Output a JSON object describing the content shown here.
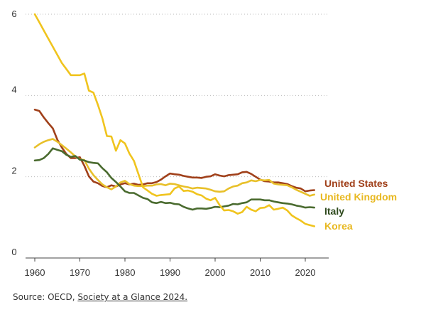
{
  "chart_data": {
    "type": "line",
    "title": "",
    "xlabel": "",
    "ylabel": "",
    "xlim": [
      1960,
      2022
    ],
    "ylim": [
      0,
      6
    ],
    "x_ticks": [
      1960,
      1970,
      1980,
      1990,
      2000,
      2010,
      2020
    ],
    "y_ticks": [
      0,
      2,
      4,
      6
    ],
    "grid": "horizontal dotted",
    "legend": "direct labels at line ends",
    "series": [
      {
        "name": "United States",
        "color": "#a0401a",
        "points": [
          [
            1960,
            3.65
          ],
          [
            1961,
            3.62
          ],
          [
            1962,
            3.46
          ],
          [
            1963,
            3.32
          ],
          [
            1964,
            3.19
          ],
          [
            1965,
            2.91
          ],
          [
            1966,
            2.72
          ],
          [
            1967,
            2.56
          ],
          [
            1968,
            2.46
          ],
          [
            1969,
            2.46
          ],
          [
            1970,
            2.48
          ],
          [
            1971,
            2.27
          ],
          [
            1972,
            2.01
          ],
          [
            1973,
            1.88
          ],
          [
            1974,
            1.84
          ],
          [
            1975,
            1.77
          ],
          [
            1976,
            1.74
          ],
          [
            1977,
            1.79
          ],
          [
            1978,
            1.76
          ],
          [
            1979,
            1.81
          ],
          [
            1980,
            1.84
          ],
          [
            1981,
            1.81
          ],
          [
            1982,
            1.83
          ],
          [
            1983,
            1.8
          ],
          [
            1984,
            1.81
          ],
          [
            1985,
            1.84
          ],
          [
            1986,
            1.84
          ],
          [
            1987,
            1.87
          ],
          [
            1988,
            1.93
          ],
          [
            1989,
            2.01
          ],
          [
            1990,
            2.08
          ],
          [
            1991,
            2.06
          ],
          [
            1992,
            2.05
          ],
          [
            1993,
            2.02
          ],
          [
            1994,
            2.0
          ],
          [
            1995,
            1.98
          ],
          [
            1996,
            1.98
          ],
          [
            1997,
            1.97
          ],
          [
            1998,
            2.0
          ],
          [
            1999,
            2.01
          ],
          [
            2000,
            2.06
          ],
          [
            2001,
            2.03
          ],
          [
            2002,
            2.01
          ],
          [
            2003,
            2.04
          ],
          [
            2004,
            2.05
          ],
          [
            2005,
            2.06
          ],
          [
            2006,
            2.11
          ],
          [
            2007,
            2.12
          ],
          [
            2008,
            2.07
          ],
          [
            2009,
            2.0
          ],
          [
            2010,
            1.93
          ],
          [
            2011,
            1.89
          ],
          [
            2012,
            1.88
          ],
          [
            2013,
            1.86
          ],
          [
            2014,
            1.86
          ],
          [
            2015,
            1.84
          ],
          [
            2016,
            1.82
          ],
          [
            2017,
            1.77
          ],
          [
            2018,
            1.73
          ],
          [
            2019,
            1.71
          ],
          [
            2020,
            1.64
          ],
          [
            2021,
            1.66
          ],
          [
            2022,
            1.67
          ]
        ]
      },
      {
        "name": "United Kingdom",
        "color": "#e8c02a",
        "points": [
          [
            1960,
            2.72
          ],
          [
            1961,
            2.8
          ],
          [
            1962,
            2.86
          ],
          [
            1963,
            2.9
          ],
          [
            1964,
            2.93
          ],
          [
            1965,
            2.86
          ],
          [
            1966,
            2.78
          ],
          [
            1967,
            2.69
          ],
          [
            1968,
            2.6
          ],
          [
            1969,
            2.5
          ],
          [
            1970,
            2.43
          ],
          [
            1971,
            2.41
          ],
          [
            1972,
            2.2
          ],
          [
            1973,
            2.04
          ],
          [
            1974,
            1.92
          ],
          [
            1975,
            1.81
          ],
          [
            1976,
            1.74
          ],
          [
            1977,
            1.69
          ],
          [
            1978,
            1.76
          ],
          [
            1979,
            1.86
          ],
          [
            1980,
            1.9
          ],
          [
            1981,
            1.82
          ],
          [
            1982,
            1.78
          ],
          [
            1983,
            1.77
          ],
          [
            1984,
            1.77
          ],
          [
            1985,
            1.78
          ],
          [
            1986,
            1.78
          ],
          [
            1987,
            1.81
          ],
          [
            1988,
            1.82
          ],
          [
            1989,
            1.79
          ],
          [
            1990,
            1.83
          ],
          [
            1991,
            1.82
          ],
          [
            1992,
            1.79
          ],
          [
            1993,
            1.76
          ],
          [
            1994,
            1.74
          ],
          [
            1995,
            1.71
          ],
          [
            1996,
            1.73
          ],
          [
            1997,
            1.72
          ],
          [
            1998,
            1.71
          ],
          [
            1999,
            1.68
          ],
          [
            2000,
            1.64
          ],
          [
            2001,
            1.63
          ],
          [
            2002,
            1.64
          ],
          [
            2003,
            1.71
          ],
          [
            2004,
            1.76
          ],
          [
            2005,
            1.78
          ],
          [
            2006,
            1.84
          ],
          [
            2007,
            1.86
          ],
          [
            2008,
            1.91
          ],
          [
            2009,
            1.89
          ],
          [
            2010,
            1.92
          ],
          [
            2011,
            1.91
          ],
          [
            2012,
            1.92
          ],
          [
            2013,
            1.83
          ],
          [
            2014,
            1.81
          ],
          [
            2015,
            1.8
          ],
          [
            2016,
            1.79
          ],
          [
            2017,
            1.74
          ],
          [
            2018,
            1.68
          ],
          [
            2019,
            1.63
          ],
          [
            2020,
            1.58
          ],
          [
            2021,
            1.53
          ],
          [
            2022,
            1.56
          ]
        ]
      },
      {
        "name": "Italy",
        "color": "#4a6b2f",
        "points": [
          [
            1960,
            2.4
          ],
          [
            1961,
            2.41
          ],
          [
            1962,
            2.46
          ],
          [
            1963,
            2.56
          ],
          [
            1964,
            2.7
          ],
          [
            1965,
            2.66
          ],
          [
            1966,
            2.63
          ],
          [
            1967,
            2.54
          ],
          [
            1968,
            2.49
          ],
          [
            1969,
            2.51
          ],
          [
            1970,
            2.42
          ],
          [
            1971,
            2.4
          ],
          [
            1972,
            2.36
          ],
          [
            1973,
            2.34
          ],
          [
            1974,
            2.33
          ],
          [
            1975,
            2.21
          ],
          [
            1976,
            2.11
          ],
          [
            1977,
            1.97
          ],
          [
            1978,
            1.87
          ],
          [
            1979,
            1.76
          ],
          [
            1980,
            1.64
          ],
          [
            1981,
            1.6
          ],
          [
            1982,
            1.6
          ],
          [
            1983,
            1.54
          ],
          [
            1984,
            1.48
          ],
          [
            1985,
            1.45
          ],
          [
            1986,
            1.37
          ],
          [
            1987,
            1.35
          ],
          [
            1988,
            1.38
          ],
          [
            1989,
            1.35
          ],
          [
            1990,
            1.36
          ],
          [
            1991,
            1.33
          ],
          [
            1992,
            1.32
          ],
          [
            1993,
            1.26
          ],
          [
            1994,
            1.22
          ],
          [
            1995,
            1.19
          ],
          [
            1996,
            1.22
          ],
          [
            1997,
            1.22
          ],
          [
            1998,
            1.21
          ],
          [
            1999,
            1.23
          ],
          [
            2000,
            1.26
          ],
          [
            2001,
            1.25
          ],
          [
            2002,
            1.27
          ],
          [
            2003,
            1.29
          ],
          [
            2004,
            1.33
          ],
          [
            2005,
            1.32
          ],
          [
            2006,
            1.35
          ],
          [
            2007,
            1.37
          ],
          [
            2008,
            1.44
          ],
          [
            2009,
            1.44
          ],
          [
            2010,
            1.44
          ],
          [
            2011,
            1.42
          ],
          [
            2012,
            1.42
          ],
          [
            2013,
            1.39
          ],
          [
            2014,
            1.37
          ],
          [
            2015,
            1.35
          ],
          [
            2016,
            1.34
          ],
          [
            2017,
            1.32
          ],
          [
            2018,
            1.29
          ],
          [
            2019,
            1.27
          ],
          [
            2020,
            1.24
          ],
          [
            2021,
            1.25
          ],
          [
            2022,
            1.24
          ]
        ]
      },
      {
        "name": "Korea",
        "color": "#f0c41e",
        "points": [
          [
            1960,
            6.0
          ],
          [
            1961,
            5.8
          ],
          [
            1962,
            5.6
          ],
          [
            1963,
            5.4
          ],
          [
            1964,
            5.2
          ],
          [
            1965,
            5.0
          ],
          [
            1966,
            4.8
          ],
          [
            1967,
            4.65
          ],
          [
            1968,
            4.5
          ],
          [
            1969,
            4.5
          ],
          [
            1970,
            4.5
          ],
          [
            1971,
            4.54
          ],
          [
            1972,
            4.12
          ],
          [
            1973,
            4.07
          ],
          [
            1974,
            3.77
          ],
          [
            1975,
            3.43
          ],
          [
            1976,
            3.0
          ],
          [
            1977,
            2.99
          ],
          [
            1978,
            2.64
          ],
          [
            1979,
            2.9
          ],
          [
            1980,
            2.82
          ],
          [
            1981,
            2.57
          ],
          [
            1982,
            2.39
          ],
          [
            1983,
            2.06
          ],
          [
            1984,
            1.74
          ],
          [
            1985,
            1.66
          ],
          [
            1986,
            1.58
          ],
          [
            1987,
            1.53
          ],
          [
            1988,
            1.55
          ],
          [
            1989,
            1.56
          ],
          [
            1990,
            1.57
          ],
          [
            1991,
            1.71
          ],
          [
            1992,
            1.76
          ],
          [
            1993,
            1.65
          ],
          [
            1994,
            1.66
          ],
          [
            1995,
            1.63
          ],
          [
            1996,
            1.57
          ],
          [
            1997,
            1.54
          ],
          [
            1998,
            1.46
          ],
          [
            1999,
            1.42
          ],
          [
            2000,
            1.48
          ],
          [
            2001,
            1.3
          ],
          [
            2002,
            1.17
          ],
          [
            2003,
            1.18
          ],
          [
            2004,
            1.15
          ],
          [
            2005,
            1.09
          ],
          [
            2006,
            1.13
          ],
          [
            2007,
            1.26
          ],
          [
            2008,
            1.19
          ],
          [
            2009,
            1.15
          ],
          [
            2010,
            1.23
          ],
          [
            2011,
            1.24
          ],
          [
            2012,
            1.3
          ],
          [
            2013,
            1.19
          ],
          [
            2014,
            1.21
          ],
          [
            2015,
            1.24
          ],
          [
            2016,
            1.17
          ],
          [
            2017,
            1.05
          ],
          [
            2018,
            0.98
          ],
          [
            2019,
            0.92
          ],
          [
            2020,
            0.84
          ],
          [
            2021,
            0.81
          ],
          [
            2022,
            0.78
          ]
        ]
      }
    ]
  },
  "source": {
    "prefix": "Source: OECD, ",
    "link_text": "Society at a Glance 2024."
  }
}
